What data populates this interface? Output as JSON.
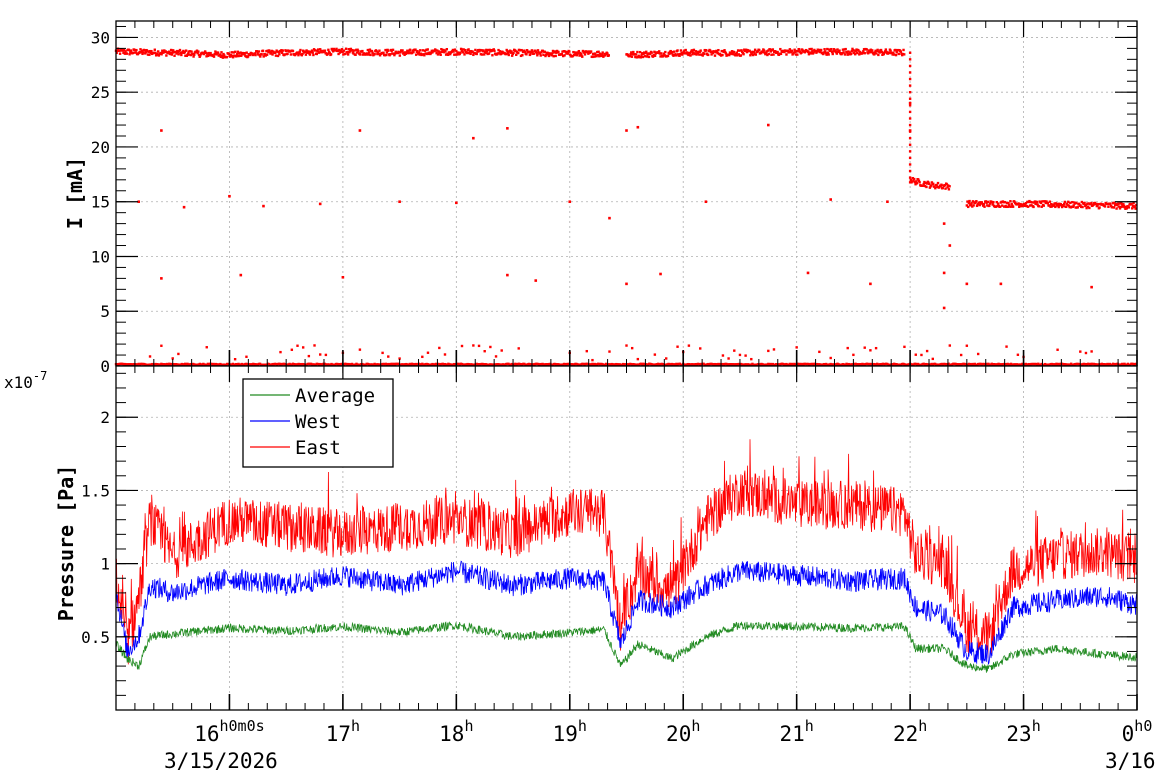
{
  "chart_data": [
    {
      "type": "scatter",
      "ylabel": "I [mA]",
      "ylim": [
        0,
        31.5
      ],
      "yticks": [
        0,
        5,
        10,
        15,
        20,
        25,
        30
      ],
      "xlim_hours": [
        15.0,
        24.0
      ],
      "grid": true,
      "series": [
        {
          "color": "#ff0000",
          "segments": [
            {
              "x": [
                15.0,
                15.5,
                16.0,
                16.5,
                17.0,
                17.5,
                18.0,
                18.5,
                19.0,
                19.35
              ],
              "y": [
                28.7,
                28.6,
                28.4,
                28.6,
                28.7,
                28.6,
                28.7,
                28.6,
                28.5,
                28.5
              ]
            },
            {
              "x": [
                19.5,
                20.0,
                20.5,
                21.0,
                21.5,
                21.95
              ],
              "y": [
                28.4,
                28.6,
                28.6,
                28.7,
                28.7,
                28.6
              ]
            },
            {
              "x": [
                22.0,
                22.1,
                22.2,
                22.35
              ],
              "y": [
                17.0,
                16.7,
                16.5,
                16.4
              ]
            },
            {
              "x": [
                22.5,
                23.0,
                23.5,
                24.0
              ],
              "y": [
                14.8,
                14.8,
                14.7,
                14.6
              ]
            }
          ]
        }
      ],
      "scatter_points": [
        {
          "x": 15.2,
          "y": 15.0
        },
        {
          "x": 15.4,
          "y": 21.5
        },
        {
          "x": 15.4,
          "y": 8.0
        },
        {
          "x": 15.6,
          "y": 14.5
        },
        {
          "x": 16.0,
          "y": 15.5
        },
        {
          "x": 16.1,
          "y": 8.3
        },
        {
          "x": 16.3,
          "y": 14.6
        },
        {
          "x": 16.8,
          "y": 14.8
        },
        {
          "x": 17.0,
          "y": 8.1
        },
        {
          "x": 17.15,
          "y": 21.5
        },
        {
          "x": 17.5,
          "y": 15.0
        },
        {
          "x": 18.0,
          "y": 14.9
        },
        {
          "x": 18.15,
          "y": 20.8
        },
        {
          "x": 18.45,
          "y": 21.7
        },
        {
          "x": 18.45,
          "y": 8.3
        },
        {
          "x": 18.7,
          "y": 7.8
        },
        {
          "x": 19.0,
          "y": 15.0
        },
        {
          "x": 19.35,
          "y": 13.5
        },
        {
          "x": 19.5,
          "y": 21.5
        },
        {
          "x": 19.6,
          "y": 21.8
        },
        {
          "x": 19.5,
          "y": 7.5
        },
        {
          "x": 19.8,
          "y": 8.4
        },
        {
          "x": 20.2,
          "y": 15.0
        },
        {
          "x": 20.75,
          "y": 22.0
        },
        {
          "x": 21.1,
          "y": 8.5
        },
        {
          "x": 21.3,
          "y": 15.2
        },
        {
          "x": 21.65,
          "y": 7.5
        },
        {
          "x": 21.8,
          "y": 15.0
        },
        {
          "x": 22.0,
          "y": 24.0
        },
        {
          "x": 22.0,
          "y": 21.5
        },
        {
          "x": 22.3,
          "y": 13.0
        },
        {
          "x": 22.35,
          "y": 11.0
        },
        {
          "x": 22.3,
          "y": 8.5
        },
        {
          "x": 22.3,
          "y": 5.3
        },
        {
          "x": 22.5,
          "y": 7.5
        },
        {
          "x": 22.8,
          "y": 7.5
        },
        {
          "x": 23.6,
          "y": 7.2
        }
      ]
    },
    {
      "type": "line",
      "ylabel": "Pressure [Pa]",
      "yscale_label": "x10-7",
      "ylim": [
        0,
        2.35
      ],
      "yticks": [
        0.5,
        1,
        1.5,
        2
      ],
      "ytick_labels": [
        "0.5",
        "1",
        "1.5",
        "2"
      ],
      "xlim_hours": [
        15.0,
        24.0
      ],
      "grid": true,
      "legend": "top-left",
      "series": [
        {
          "name": "Average",
          "color": "#228b22",
          "x": [
            15.0,
            15.1,
            15.2,
            15.3,
            15.5,
            16.0,
            16.5,
            17.0,
            17.5,
            18.0,
            18.5,
            19.0,
            19.3,
            19.45,
            19.6,
            19.9,
            20.2,
            20.5,
            21.0,
            21.5,
            21.95,
            22.05,
            22.3,
            22.5,
            22.7,
            22.9,
            23.3,
            23.7,
            24.0
          ],
          "y": [
            0.45,
            0.35,
            0.3,
            0.5,
            0.52,
            0.56,
            0.54,
            0.57,
            0.53,
            0.58,
            0.5,
            0.53,
            0.55,
            0.3,
            0.45,
            0.35,
            0.5,
            0.58,
            0.57,
            0.56,
            0.57,
            0.42,
            0.42,
            0.3,
            0.28,
            0.38,
            0.42,
            0.38,
            0.36
          ]
        },
        {
          "name": "West",
          "color": "#0000ff",
          "x": [
            15.0,
            15.1,
            15.2,
            15.3,
            15.5,
            16.0,
            16.5,
            17.0,
            17.5,
            18.0,
            18.5,
            19.0,
            19.3,
            19.45,
            19.6,
            19.9,
            20.2,
            20.5,
            21.0,
            21.5,
            21.95,
            22.05,
            22.3,
            22.5,
            22.7,
            22.9,
            23.3,
            23.7,
            24.0
          ],
          "y": [
            0.8,
            0.4,
            0.5,
            0.85,
            0.8,
            0.9,
            0.85,
            0.92,
            0.85,
            0.95,
            0.85,
            0.9,
            0.88,
            0.45,
            0.75,
            0.7,
            0.85,
            0.95,
            0.92,
            0.88,
            0.9,
            0.7,
            0.65,
            0.4,
            0.38,
            0.7,
            0.75,
            0.78,
            0.72
          ]
        },
        {
          "name": "East",
          "color": "#ff0000",
          "x": [
            15.0,
            15.1,
            15.2,
            15.3,
            15.5,
            16.0,
            16.5,
            17.0,
            17.5,
            18.0,
            18.5,
            19.0,
            19.3,
            19.45,
            19.6,
            19.9,
            20.2,
            20.5,
            21.0,
            21.5,
            21.95,
            22.05,
            22.3,
            22.5,
            22.7,
            22.9,
            23.3,
            23.7,
            24.0
          ],
          "y": [
            0.9,
            0.45,
            0.75,
            1.3,
            1.05,
            1.3,
            1.25,
            1.2,
            1.25,
            1.3,
            1.2,
            1.35,
            1.35,
            0.55,
            0.95,
            0.8,
            1.3,
            1.5,
            1.4,
            1.4,
            1.35,
            1.05,
            1.0,
            0.55,
            0.5,
            0.95,
            1.05,
            1.08,
            1.02
          ]
        }
      ]
    }
  ],
  "time_axis": {
    "tick_hours": [
      16,
      17,
      18,
      19,
      20,
      21,
      22,
      23,
      24
    ],
    "labels": [
      {
        "main": "16",
        "suffix": "h0m0s"
      },
      {
        "main": "17",
        "suffix": "h"
      },
      {
        "main": "18",
        "suffix": "h"
      },
      {
        "main": "19",
        "suffix": "h"
      },
      {
        "main": "20",
        "suffix": "h"
      },
      {
        "main": "21",
        "suffix": "h"
      },
      {
        "main": "22",
        "suffix": "h"
      },
      {
        "main": "23",
        "suffix": "h"
      },
      {
        "main": "0",
        "suffix": "h0"
      }
    ],
    "start_date": "3/15/2026",
    "end_date": "3/16"
  },
  "legend_entries": [
    "Average",
    "West",
    "East"
  ],
  "scale_exponent_label": "x10",
  "scale_exponent_power": "-7"
}
